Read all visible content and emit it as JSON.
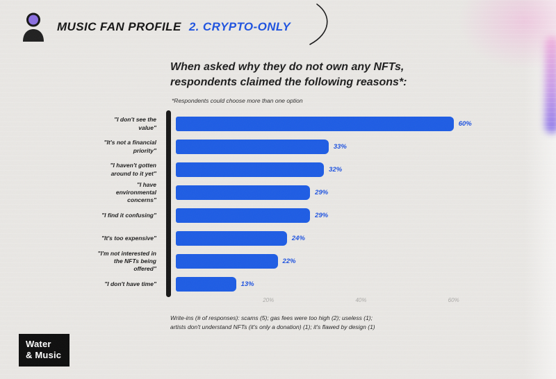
{
  "header": {
    "title": "MUSIC FAN PROFILE",
    "subtitle": "2. CRYPTO-ONLY"
  },
  "chart_heading": {
    "title_line1": "When asked why they do not own any NFTs,",
    "title_line2": "respondents claimed the following reasons*:",
    "note": "*Respondents could choose more than one option"
  },
  "chart_data": {
    "type": "bar",
    "orientation": "horizontal",
    "title": "When asked why they do not own any NFTs, respondents claimed the following reasons*:",
    "categories": [
      "\"I don't see the value\"",
      "\"It's not a financial priority\"",
      "\"I haven't gotten around to it yet\"",
      "\"I have environmental concerns\"",
      "\"I find it confusing\"",
      "\"It's too expensive\"",
      "\"I'm not interested in the NFTs being offered\"",
      "\"I don't have time\""
    ],
    "values": [
      60,
      33,
      32,
      29,
      29,
      24,
      22,
      13
    ],
    "value_labels": [
      "60%",
      "33%",
      "32%",
      "29%",
      "29%",
      "24%",
      "22%",
      "13%"
    ],
    "xlim": [
      0,
      65
    ],
    "ticks": [
      {
        "label": "20%",
        "value": 20
      },
      {
        "label": "40%",
        "value": 40
      },
      {
        "label": "60%",
        "value": 60
      }
    ],
    "bar_color": "#1d5ce4",
    "axis_color": "#161616",
    "grid": false,
    "legend": "none"
  },
  "footnote": {
    "line1": "Write-ins (# of responses): scams (5); gas fees were too high (2); useless (1);",
    "line2": "artists don't understand NFTs (it's only a donation) (1); it's flawed by design (1)"
  },
  "logo": {
    "line1": "Water",
    "line2": "& Music"
  },
  "colors": {
    "accent_blue": "#1d52e0",
    "background": "#e9e7e4"
  }
}
